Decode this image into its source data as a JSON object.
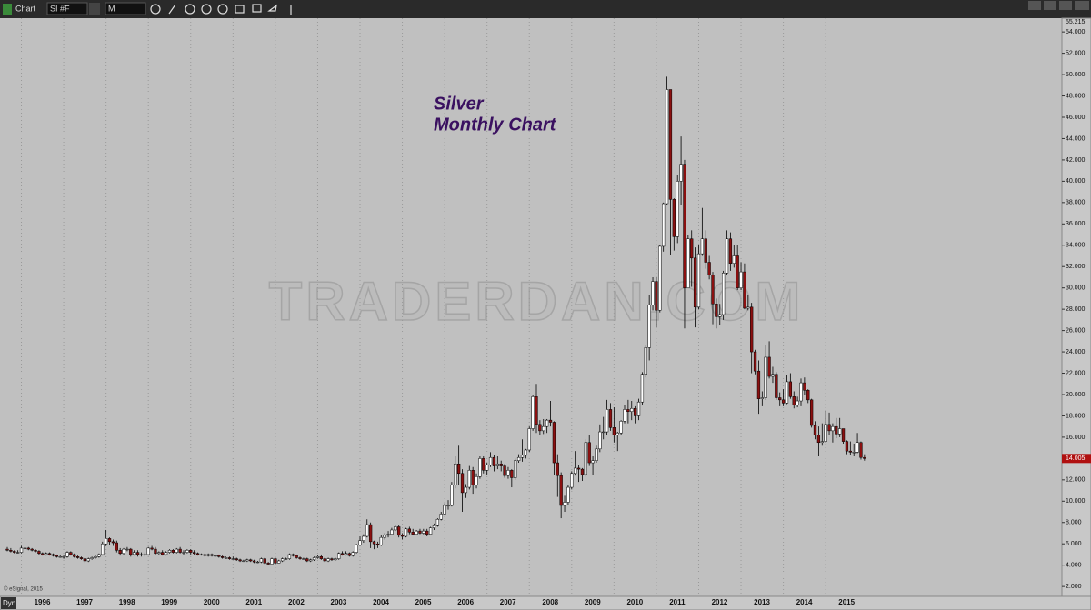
{
  "toolbar": {
    "title": "Chart",
    "symbol": "SI #F",
    "interval": "M",
    "mode": "Dyn"
  },
  "chart_data": {
    "type": "candlestick",
    "annotations": [
      "Silver",
      "Monthly Chart"
    ],
    "watermark": "TRADERDAN.COM",
    "source": "© eSignal, 2015",
    "last_price": 14.005,
    "up_color": "#ffffff",
    "down_color": "#8b1010",
    "categories": [
      null,
      null,
      null,
      null,
      "1996",
      null,
      null,
      null,
      null,
      null,
      null,
      null,
      null,
      null,
      null,
      null,
      "1997",
      null,
      null,
      null,
      null,
      null,
      null,
      null,
      null,
      null,
      null,
      null,
      "1998",
      null,
      null,
      null,
      null,
      null,
      null,
      null,
      null,
      null,
      null,
      null,
      "1999",
      null,
      null,
      null,
      null,
      null,
      null,
      null,
      null,
      null,
      null,
      null,
      "2000",
      null,
      null,
      null,
      null,
      null,
      null,
      null,
      null,
      null,
      null,
      null,
      "2001",
      null,
      null,
      null,
      null,
      null,
      null,
      null,
      null,
      null,
      null,
      null,
      "2002",
      null,
      null,
      null,
      null,
      null,
      null,
      null,
      null,
      null,
      null,
      null,
      "2003",
      null,
      null,
      null,
      null,
      null,
      null,
      null,
      null,
      null,
      null,
      null,
      "2004",
      null,
      null,
      null,
      null,
      null,
      null,
      null,
      null,
      null,
      null,
      null,
      "2005",
      null,
      null,
      null,
      null,
      null,
      null,
      null,
      null,
      null,
      null,
      null,
      "2006",
      null,
      null,
      null,
      null,
      null,
      null,
      null,
      null,
      null,
      null,
      null,
      "2007",
      null,
      null,
      null,
      null,
      null,
      null,
      null,
      null,
      null,
      null,
      null,
      "2008",
      null,
      null,
      null,
      null,
      null,
      null,
      null,
      null,
      null,
      null,
      null,
      "2009",
      null,
      null,
      null,
      null,
      null,
      null,
      null,
      null,
      null,
      null,
      null,
      "2010",
      null,
      null,
      null,
      null,
      null,
      null,
      null,
      null,
      null,
      null,
      null,
      "2011",
      null,
      null,
      null,
      null,
      null,
      null,
      null,
      null,
      null,
      null,
      null,
      "2012",
      null,
      null,
      null,
      null,
      null,
      null,
      null,
      null,
      null,
      null,
      null,
      "2013",
      null,
      null,
      null,
      null,
      null,
      null,
      null,
      null,
      null,
      null,
      null,
      "2014",
      null,
      null,
      null,
      null,
      null,
      null,
      null,
      null,
      null,
      null,
      null,
      "2015",
      null,
      null,
      null,
      null,
      null,
      null,
      null,
      null,
      null,
      null,
      null
    ],
    "open": [
      5.5,
      5.4,
      5.3,
      5.2,
      5.2,
      5.6,
      5.6,
      5.5,
      5.4,
      5.3,
      5.1,
      5.0,
      5.1,
      5.0,
      4.9,
      4.8,
      4.8,
      4.8,
      5.2,
      5.0,
      4.8,
      4.7,
      4.6,
      4.4,
      4.6,
      4.7,
      4.8,
      5.0,
      6.0,
      6.5,
      6.2,
      6.1,
      5.4,
      5.1,
      5.5,
      5.5,
      5.0,
      5.2,
      5.0,
      5.0,
      5.0,
      5.6,
      5.5,
      5.1,
      5.2,
      5.0,
      5.2,
      5.4,
      5.2,
      5.5,
      5.2,
      5.2,
      5.4,
      5.2,
      5.1,
      5.0,
      5.0,
      4.9,
      5.0,
      4.9,
      4.9,
      4.8,
      4.7,
      4.7,
      4.6,
      4.6,
      4.5,
      4.4,
      4.4,
      4.5,
      4.4,
      4.3,
      4.3,
      4.6,
      4.2,
      4.1,
      4.6,
      4.2,
      4.4,
      4.6,
      4.6,
      5.0,
      4.9,
      4.7,
      4.6,
      4.6,
      4.4,
      4.5,
      4.7,
      4.8,
      4.6,
      4.4,
      4.6,
      4.5,
      4.6,
      5.1,
      5.0,
      5.1,
      4.9,
      5.2,
      5.9,
      6.3,
      6.7,
      7.8,
      6.2,
      6.0,
      5.9,
      6.6,
      6.8,
      6.9,
      7.3,
      7.6,
      6.8,
      6.7,
      7.4,
      7.1,
      6.9,
      7.2,
      7.0,
      7.2,
      6.9,
      7.5,
      7.7,
      8.3,
      8.8,
      9.6,
      9.6,
      11.5,
      13.5,
      12.6,
      10.8,
      11.3,
      12.9,
      11.5,
      12.3,
      14.0,
      12.9,
      13.4,
      14.1,
      13.3,
      13.5,
      13.3,
      12.4,
      12.9,
      12.2,
      13.8,
      14.1,
      14.3,
      14.8,
      16.8,
      19.8,
      17.2,
      16.6,
      17.0,
      17.6,
      17.4,
      13.6,
      12.4,
      9.6,
      9.9,
      11.3,
      12.6,
      13.1,
      13.0,
      12.5,
      15.5,
      13.6,
      13.8,
      14.9,
      16.5,
      16.5,
      18.6,
      16.9,
      16.2,
      16.4,
      17.5,
      18.6,
      18.4,
      18.7,
      18.0,
      19.3,
      21.9,
      24.4,
      28.4,
      30.6,
      27.9,
      33.9,
      37.9,
      48.6,
      38.3,
      34.8,
      40.0,
      41.6,
      30.0,
      34.6,
      32.8,
      28.2,
      33.2,
      34.6,
      32.4,
      31.2,
      28.5,
      27.3,
      27.5,
      31.4,
      34.6,
      32.3,
      33.0,
      30.0,
      31.5,
      28.1,
      28.2,
      24.0,
      22.2,
      19.6,
      19.7,
      23.5,
      21.7,
      21.9,
      19.7,
      19.5,
      19.2,
      21.2,
      19.8,
      19.0,
      19.4,
      21.1,
      20.4,
      19.5,
      17.1,
      16.2,
      15.5,
      15.6,
      17.2,
      16.6,
      17.0,
      16.3,
      16.8,
      15.6,
      14.7,
      14.6,
      14.6,
      15.5,
      14.1
    ],
    "high": [
      5.7,
      5.6,
      5.4,
      5.4,
      5.8,
      5.8,
      5.7,
      5.6,
      5.5,
      5.4,
      5.2,
      5.2,
      5.2,
      5.1,
      5.0,
      5.0,
      5.0,
      5.3,
      5.3,
      5.1,
      4.9,
      4.8,
      4.7,
      4.7,
      4.8,
      4.9,
      5.1,
      6.2,
      7.3,
      6.6,
      6.4,
      6.3,
      5.6,
      5.6,
      5.7,
      5.6,
      5.4,
      5.4,
      5.2,
      5.2,
      5.7,
      5.8,
      5.7,
      5.3,
      5.4,
      5.3,
      5.5,
      5.5,
      5.6,
      5.7,
      5.4,
      5.5,
      5.5,
      5.4,
      5.2,
      5.1,
      5.1,
      5.1,
      5.1,
      5.0,
      5.0,
      4.9,
      4.8,
      4.8,
      4.8,
      4.7,
      4.6,
      4.5,
      4.6,
      4.6,
      4.5,
      4.4,
      4.7,
      4.7,
      4.3,
      4.7,
      4.7,
      4.5,
      4.7,
      4.7,
      5.1,
      5.1,
      5.0,
      4.8,
      4.7,
      4.7,
      4.6,
      4.8,
      5.0,
      5.0,
      4.7,
      4.7,
      4.7,
      4.7,
      5.2,
      5.3,
      5.3,
      5.2,
      5.3,
      6.0,
      6.7,
      6.9,
      8.3,
      8.0,
      6.3,
      6.2,
      6.8,
      7.0,
      7.2,
      7.5,
      7.8,
      7.8,
      7.0,
      7.5,
      7.6,
      7.4,
      7.3,
      7.4,
      7.4,
      7.4,
      7.6,
      7.9,
      8.4,
      9.0,
      9.8,
      10.1,
      11.8,
      14.2,
      15.2,
      13.0,
      11.6,
      13.3,
      13.2,
      12.6,
      14.2,
      14.2,
      13.6,
      14.6,
      14.3,
      14.2,
      13.8,
      13.5,
      13.2,
      13.0,
      14.0,
      14.4,
      15.8,
      14.9,
      17.0,
      20.0,
      21.0,
      17.6,
      17.7,
      17.7,
      19.4,
      17.5,
      14.4,
      12.7,
      10.5,
      11.5,
      12.8,
      14.7,
      13.4,
      13.1,
      15.8,
      16.2,
      14.2,
      15.2,
      17.2,
      17.9,
      19.5,
      19.2,
      18.8,
      16.5,
      17.6,
      19.0,
      19.5,
      19.4,
      18.9,
      19.6,
      22.1,
      24.6,
      29.3,
      31.0,
      31.0,
      34.0,
      38.0,
      49.8,
      48.6,
      38.4,
      40.6,
      44.2,
      42.0,
      35.0,
      35.4,
      33.8,
      34.0,
      37.5,
      35.4,
      33.0,
      31.5,
      29.0,
      28.5,
      31.6,
      35.4,
      35.2,
      34.0,
      34.0,
      32.4,
      32.3,
      29.3,
      28.6,
      24.2,
      23.2,
      20.3,
      24.6,
      25.0,
      22.6,
      22.1,
      20.2,
      20.5,
      21.8,
      22.0,
      20.3,
      19.8,
      21.5,
      21.6,
      20.5,
      19.6,
      17.5,
      17.0,
      17.3,
      18.5,
      18.3,
      17.3,
      17.8,
      17.8,
      16.8,
      15.7,
      15.6,
      15.4,
      16.4,
      15.6,
      14.4
    ],
    "low": [
      5.3,
      5.2,
      5.1,
      5.1,
      5.1,
      5.5,
      5.4,
      5.3,
      5.2,
      5.0,
      4.9,
      4.9,
      4.9,
      4.8,
      4.7,
      4.7,
      4.6,
      4.7,
      4.9,
      4.7,
      4.6,
      4.5,
      4.2,
      4.3,
      4.5,
      4.6,
      4.7,
      4.9,
      5.8,
      5.9,
      5.8,
      5.2,
      4.9,
      5.0,
      5.3,
      4.8,
      4.9,
      4.8,
      4.8,
      4.8,
      4.9,
      5.4,
      5.0,
      5.0,
      4.9,
      4.9,
      5.1,
      5.1,
      5.1,
      5.1,
      5.0,
      5.1,
      5.0,
      5.0,
      4.9,
      4.9,
      4.8,
      4.8,
      4.8,
      4.8,
      4.7,
      4.6,
      4.6,
      4.5,
      4.5,
      4.4,
      4.3,
      4.3,
      4.3,
      4.3,
      4.2,
      4.2,
      4.2,
      4.1,
      4.0,
      4.1,
      4.1,
      4.2,
      4.3,
      4.5,
      4.5,
      4.8,
      4.6,
      4.5,
      4.5,
      4.3,
      4.3,
      4.4,
      4.6,
      4.5,
      4.3,
      4.3,
      4.4,
      4.4,
      4.5,
      4.9,
      4.9,
      4.8,
      4.8,
      5.1,
      5.8,
      6.1,
      6.6,
      5.6,
      5.5,
      5.6,
      5.8,
      6.4,
      6.6,
      6.8,
      7.2,
      6.6,
      6.4,
      6.6,
      6.9,
      6.8,
      6.8,
      6.9,
      6.9,
      6.7,
      6.8,
      7.3,
      7.6,
      8.2,
      8.7,
      9.2,
      9.5,
      11.2,
      11.5,
      9.0,
      10.3,
      11.1,
      10.7,
      11.2,
      12.1,
      12.6,
      12.5,
      13.2,
      12.8,
      13.0,
      12.8,
      12.2,
      12.1,
      11.3,
      12.0,
      13.6,
      13.7,
      14.0,
      14.6,
      16.6,
      16.4,
      16.2,
      16.3,
      16.4,
      17.0,
      12.5,
      10.4,
      8.4,
      9.0,
      9.6,
      11.1,
      12.4,
      11.8,
      11.9,
      12.3,
      13.3,
      12.5,
      13.6,
      14.6,
      15.8,
      16.2,
      16.6,
      15.5,
      14.7,
      16.2,
      17.3,
      17.3,
      17.6,
      17.3,
      17.6,
      19.0,
      21.6,
      23.2,
      27.9,
      26.3,
      27.7,
      33.4,
      37.8,
      33.1,
      33.5,
      34.2,
      37.8,
      26.2,
      30.0,
      30.1,
      26.3,
      28.0,
      33.0,
      31.8,
      30.8,
      26.6,
      26.2,
      26.5,
      27.0,
      31.2,
      31.6,
      31.9,
      29.8,
      29.8,
      28.0,
      27.9,
      22.0,
      21.9,
      18.2,
      18.9,
      19.5,
      21.5,
      21.1,
      19.5,
      18.9,
      18.9,
      19.1,
      19.6,
      18.7,
      18.8,
      18.9,
      20.0,
      19.2,
      16.9,
      15.8,
      14.2,
      15.2,
      15.5,
      16.2,
      15.5,
      15.9,
      16.0,
      15.4,
      14.4,
      14.3,
      14.2,
      14.5,
      13.9,
      13.8
    ],
    "close": [
      5.4,
      5.3,
      5.2,
      5.2,
      5.6,
      5.6,
      5.5,
      5.4,
      5.3,
      5.1,
      5.0,
      5.1,
      5.0,
      4.9,
      4.8,
      4.8,
      4.8,
      5.2,
      5.0,
      4.8,
      4.7,
      4.6,
      4.4,
      4.6,
      4.7,
      4.8,
      5.0,
      6.0,
      6.5,
      6.2,
      6.1,
      5.4,
      5.1,
      5.5,
      5.5,
      5.0,
      5.2,
      5.0,
      5.0,
      5.0,
      5.6,
      5.5,
      5.1,
      5.2,
      5.0,
      5.2,
      5.4,
      5.2,
      5.5,
      5.2,
      5.2,
      5.4,
      5.2,
      5.1,
      5.0,
      5.0,
      4.9,
      5.0,
      4.9,
      4.9,
      4.8,
      4.7,
      4.7,
      4.6,
      4.6,
      4.5,
      4.4,
      4.4,
      4.5,
      4.4,
      4.3,
      4.3,
      4.6,
      4.2,
      4.1,
      4.6,
      4.2,
      4.4,
      4.6,
      4.6,
      5.0,
      4.9,
      4.7,
      4.6,
      4.6,
      4.4,
      4.5,
      4.7,
      4.8,
      4.6,
      4.4,
      4.6,
      4.5,
      4.6,
      5.1,
      5.0,
      5.1,
      4.9,
      5.2,
      5.9,
      6.3,
      6.7,
      7.8,
      6.2,
      6.0,
      5.9,
      6.6,
      6.8,
      6.9,
      7.3,
      7.6,
      6.8,
      6.7,
      7.4,
      7.1,
      6.9,
      7.2,
      7.0,
      7.2,
      6.9,
      7.5,
      7.7,
      8.3,
      8.8,
      9.6,
      9.6,
      11.5,
      13.5,
      12.6,
      10.8,
      11.3,
      12.9,
      11.5,
      12.3,
      14.0,
      12.9,
      13.4,
      14.1,
      13.3,
      13.5,
      13.3,
      12.4,
      12.9,
      12.2,
      13.8,
      14.1,
      14.3,
      14.8,
      16.8,
      19.8,
      17.2,
      16.6,
      17.0,
      17.6,
      17.4,
      13.6,
      12.4,
      9.6,
      9.9,
      11.3,
      12.6,
      13.1,
      13.0,
      12.5,
      15.5,
      13.6,
      13.8,
      14.9,
      16.5,
      16.5,
      18.6,
      16.9,
      16.2,
      16.4,
      17.5,
      18.6,
      18.4,
      18.7,
      18.0,
      19.3,
      21.9,
      24.4,
      28.4,
      30.6,
      27.9,
      33.9,
      37.9,
      48.6,
      38.3,
      34.8,
      40.0,
      41.6,
      30.0,
      34.6,
      32.8,
      28.2,
      33.2,
      34.6,
      32.4,
      31.2,
      28.5,
      27.3,
      27.5,
      31.4,
      34.6,
      32.3,
      33.0,
      30.0,
      31.5,
      28.1,
      28.2,
      24.0,
      22.2,
      19.6,
      19.7,
      23.5,
      21.7,
      21.9,
      19.7,
      19.5,
      19.2,
      21.2,
      19.8,
      19.0,
      19.4,
      21.1,
      20.4,
      19.5,
      17.1,
      16.2,
      15.5,
      15.6,
      17.2,
      16.6,
      17.0,
      16.3,
      16.8,
      15.6,
      14.7,
      14.6,
      14.6,
      15.5,
      14.1,
      14.0
    ],
    "ylim": [
      1.5,
      55.215
    ],
    "yticks": [
      {
        "value": 2,
        "label": "2.000"
      },
      {
        "value": 4,
        "label": "4.000"
      },
      {
        "value": 6,
        "label": "6.000"
      },
      {
        "value": 8,
        "label": "8.000"
      },
      {
        "value": 10,
        "label": "10.000"
      },
      {
        "value": 12,
        "label": "12.000"
      },
      {
        "value": 14,
        "label": "14.000"
      },
      {
        "value": 16,
        "label": "16.000"
      },
      {
        "value": 18,
        "label": "18.000"
      },
      {
        "value": 20,
        "label": "20.000"
      },
      {
        "value": 22,
        "label": "22.000"
      },
      {
        "value": 24,
        "label": "24.000"
      },
      {
        "value": 26,
        "label": "26.000"
      },
      {
        "value": 28,
        "label": "28.000"
      },
      {
        "value": 30,
        "label": "30.000"
      },
      {
        "value": 32,
        "label": "32.000"
      },
      {
        "value": 34,
        "label": "34.000"
      },
      {
        "value": 36,
        "label": "36.000"
      },
      {
        "value": 38,
        "label": "38.000"
      },
      {
        "value": 40,
        "label": "40.000"
      },
      {
        "value": 42,
        "label": "42.000"
      },
      {
        "value": 44,
        "label": "44.000"
      },
      {
        "value": 46,
        "label": "46.000"
      },
      {
        "value": 48,
        "label": "48.000"
      },
      {
        "value": 50,
        "label": "50.000"
      },
      {
        "value": 52,
        "label": "52.000"
      },
      {
        "value": 54,
        "label": "54.000"
      }
    ]
  }
}
